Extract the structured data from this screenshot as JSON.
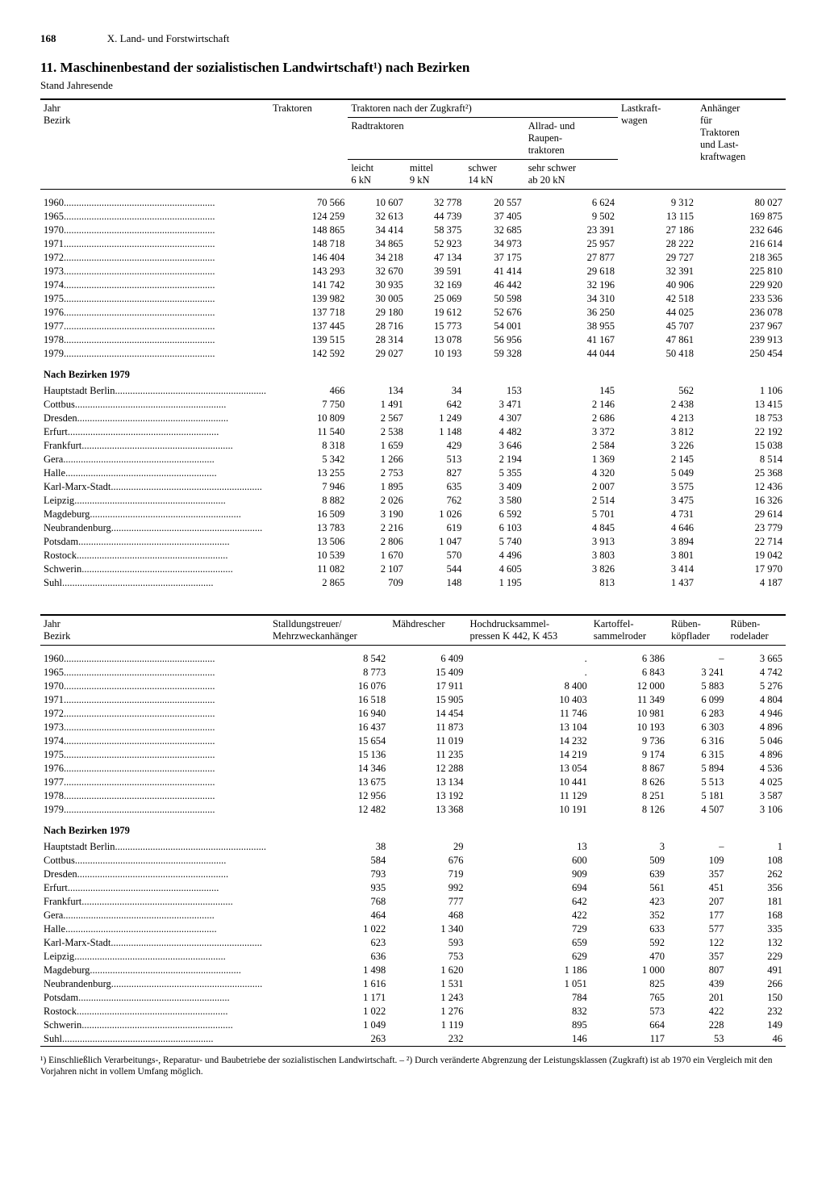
{
  "page": {
    "number": "168",
    "chapter": "X. Land- und Forstwirtschaft",
    "title": "11. Maschinenbestand der sozialistischen Landwirtschaft¹) nach Bezirken",
    "subtitle": "Stand Jahresende"
  },
  "table1": {
    "row_header": "Jahr\nBezirk",
    "col_traktoren": "Traktoren",
    "col_zugkraft": "Traktoren nach der Zugkraft²)",
    "col_rad": "Radtraktoren",
    "col_allrad": "Allrad- und\nRaupen-\ntraktoren",
    "col_lkw": "Lastkraft-\nwagen",
    "col_anh": "Anhänger\nfür\nTraktoren\nund Last-\nkraftwagen",
    "sub_leicht": "leicht\n6 kN",
    "sub_mittel": "mittel\n9 kN",
    "sub_schwer": "schwer\n14 kN",
    "sub_sehrschwer": "sehr schwer\nab 20 kN",
    "years": [
      {
        "label": "1960",
        "v": [
          "70 566",
          "10 607",
          "32 778",
          "20 557",
          "6 624",
          "9 312",
          "80 027"
        ]
      },
      {
        "label": "1965",
        "v": [
          "124 259",
          "32 613",
          "44 739",
          "37 405",
          "9 502",
          "13 115",
          "169 875"
        ]
      },
      {
        "label": "1970",
        "v": [
          "148 865",
          "34 414",
          "58 375",
          "32 685",
          "23 391",
          "27 186",
          "232 646"
        ]
      },
      {
        "label": "1971",
        "v": [
          "148 718",
          "34 865",
          "52 923",
          "34 973",
          "25 957",
          "28 222",
          "216 614"
        ]
      },
      {
        "label": "1972",
        "v": [
          "146 404",
          "34 218",
          "47 134",
          "37 175",
          "27 877",
          "29 727",
          "218 365"
        ]
      },
      {
        "label": "1973",
        "v": [
          "143 293",
          "32 670",
          "39 591",
          "41 414",
          "29 618",
          "32 391",
          "225 810"
        ]
      },
      {
        "label": "1974",
        "v": [
          "141 742",
          "30 935",
          "32 169",
          "46 442",
          "32 196",
          "40 906",
          "229 920"
        ]
      },
      {
        "label": "1975",
        "v": [
          "139 982",
          "30 005",
          "25 069",
          "50 598",
          "34 310",
          "42 518",
          "233 536"
        ]
      },
      {
        "label": "1976",
        "v": [
          "137 718",
          "29 180",
          "19 612",
          "52 676",
          "36 250",
          "44 025",
          "236 078"
        ]
      },
      {
        "label": "1977",
        "v": [
          "137 445",
          "28 716",
          "15 773",
          "54 001",
          "38 955",
          "45 707",
          "237 967"
        ]
      },
      {
        "label": "1978",
        "v": [
          "139 515",
          "28 314",
          "13 078",
          "56 956",
          "41 167",
          "47 861",
          "239 913"
        ]
      },
      {
        "label": "1979",
        "v": [
          "142 592",
          "29 027",
          "10 193",
          "59 328",
          "44 044",
          "50 418",
          "250 454"
        ]
      }
    ],
    "section_title": "Nach Bezirken 1979",
    "bezirke": [
      {
        "label": "Hauptstadt Berlin",
        "v": [
          "466",
          "134",
          "34",
          "153",
          "145",
          "562",
          "1 106"
        ]
      },
      {
        "label": "Cottbus",
        "v": [
          "7 750",
          "1 491",
          "642",
          "3 471",
          "2 146",
          "2 438",
          "13 415"
        ]
      },
      {
        "label": "Dresden",
        "v": [
          "10 809",
          "2 567",
          "1 249",
          "4 307",
          "2 686",
          "4 213",
          "18 753"
        ]
      },
      {
        "label": "Erfurt",
        "v": [
          "11 540",
          "2 538",
          "1 148",
          "4 482",
          "3 372",
          "3 812",
          "22 192"
        ]
      },
      {
        "label": "Frankfurt",
        "v": [
          "8 318",
          "1 659",
          "429",
          "3 646",
          "2 584",
          "3 226",
          "15 038"
        ]
      },
      {
        "label": "Gera",
        "v": [
          "5 342",
          "1 266",
          "513",
          "2 194",
          "1 369",
          "2 145",
          "8 514"
        ]
      },
      {
        "label": "Halle",
        "v": [
          "13 255",
          "2 753",
          "827",
          "5 355",
          "4 320",
          "5 049",
          "25 368"
        ]
      },
      {
        "label": "Karl-Marx-Stadt",
        "v": [
          "7 946",
          "1 895",
          "635",
          "3 409",
          "2 007",
          "3 575",
          "12 436"
        ]
      },
      {
        "label": "Leipzig",
        "v": [
          "8 882",
          "2 026",
          "762",
          "3 580",
          "2 514",
          "3 475",
          "16 326"
        ]
      },
      {
        "label": "Magdeburg",
        "v": [
          "16 509",
          "3 190",
          "1 026",
          "6 592",
          "5 701",
          "4 731",
          "29 614"
        ]
      },
      {
        "label": "Neubrandenburg",
        "v": [
          "13 783",
          "2 216",
          "619",
          "6 103",
          "4 845",
          "4 646",
          "23 779"
        ]
      },
      {
        "label": "Potsdam",
        "v": [
          "13 506",
          "2 806",
          "1 047",
          "5 740",
          "3 913",
          "3 894",
          "22 714"
        ]
      },
      {
        "label": "Rostock",
        "v": [
          "10 539",
          "1 670",
          "570",
          "4 496",
          "3 803",
          "3 801",
          "19 042"
        ]
      },
      {
        "label": "Schwerin",
        "v": [
          "11 082",
          "2 107",
          "544",
          "4 605",
          "3 826",
          "3 414",
          "17 970"
        ]
      },
      {
        "label": "Suhl",
        "v": [
          "2 865",
          "709",
          "148",
          "1 195",
          "813",
          "1 437",
          "4 187"
        ]
      }
    ]
  },
  "table2": {
    "row_header": "Jahr\nBezirk",
    "cols": [
      "Stalldungstreuer/\nMehrzweckanhänger",
      "Mähdrescher",
      "Hochdrucksammel-\npressen K 442, K 453",
      "Kartoffel-\nsammelroder",
      "Rüben-\nköpflader",
      "Rüben-\nrodelader"
    ],
    "years": [
      {
        "label": "1960",
        "v": [
          "8 542",
          "6 409",
          ".",
          "6 386",
          "–",
          "3 665"
        ]
      },
      {
        "label": "1965",
        "v": [
          "8 773",
          "15 409",
          ".",
          "6 843",
          "3 241",
          "4 742"
        ]
      },
      {
        "label": "1970",
        "v": [
          "16 076",
          "17 911",
          "8 400",
          "12 000",
          "5 883",
          "5 276"
        ]
      },
      {
        "label": "1971",
        "v": [
          "16 518",
          "15 905",
          "10 403",
          "11 349",
          "6 099",
          "4 804"
        ]
      },
      {
        "label": "1972",
        "v": [
          "16 940",
          "14 454",
          "11 746",
          "10 981",
          "6 283",
          "4 946"
        ]
      },
      {
        "label": "1973",
        "v": [
          "16 437",
          "11 873",
          "13 104",
          "10 193",
          "6 303",
          "4 896"
        ]
      },
      {
        "label": "1974",
        "v": [
          "15 654",
          "11 019",
          "14 232",
          "9 736",
          "6 316",
          "5 046"
        ]
      },
      {
        "label": "1975",
        "v": [
          "15 136",
          "11 235",
          "14 219",
          "9 174",
          "6 315",
          "4 896"
        ]
      },
      {
        "label": "1976",
        "v": [
          "14 346",
          "12 288",
          "13 054",
          "8 867",
          "5 894",
          "4 536"
        ]
      },
      {
        "label": "1977",
        "v": [
          "13 675",
          "13 134",
          "10 441",
          "8 626",
          "5 513",
          "4 025"
        ]
      },
      {
        "label": "1978",
        "v": [
          "12 956",
          "13 192",
          "11 129",
          "8 251",
          "5 181",
          "3 587"
        ]
      },
      {
        "label": "1979",
        "v": [
          "12 482",
          "13 368",
          "10 191",
          "8 126",
          "4 507",
          "3 106"
        ]
      }
    ],
    "section_title": "Nach Bezirken 1979",
    "bezirke": [
      {
        "label": "Hauptstadt Berlin",
        "v": [
          "38",
          "29",
          "13",
          "3",
          "–",
          "1"
        ]
      },
      {
        "label": "Cottbus",
        "v": [
          "584",
          "676",
          "600",
          "509",
          "109",
          "108"
        ]
      },
      {
        "label": "Dresden",
        "v": [
          "793",
          "719",
          "909",
          "639",
          "357",
          "262"
        ]
      },
      {
        "label": "Erfurt",
        "v": [
          "935",
          "992",
          "694",
          "561",
          "451",
          "356"
        ]
      },
      {
        "label": "Frankfurt",
        "v": [
          "768",
          "777",
          "642",
          "423",
          "207",
          "181"
        ]
      },
      {
        "label": "Gera",
        "v": [
          "464",
          "468",
          "422",
          "352",
          "177",
          "168"
        ]
      },
      {
        "label": "Halle",
        "v": [
          "1 022",
          "1 340",
          "729",
          "633",
          "577",
          "335"
        ]
      },
      {
        "label": "Karl-Marx-Stadt",
        "v": [
          "623",
          "593",
          "659",
          "592",
          "122",
          "132"
        ]
      },
      {
        "label": "Leipzig",
        "v": [
          "636",
          "753",
          "629",
          "470",
          "357",
          "229"
        ]
      },
      {
        "label": "Magdeburg",
        "v": [
          "1 498",
          "1 620",
          "1 186",
          "1 000",
          "807",
          "491"
        ]
      },
      {
        "label": "Neubrandenburg",
        "v": [
          "1 616",
          "1 531",
          "1 051",
          "825",
          "439",
          "266"
        ]
      },
      {
        "label": "Potsdam",
        "v": [
          "1 171",
          "1 243",
          "784",
          "765",
          "201",
          "150"
        ]
      },
      {
        "label": "Rostock",
        "v": [
          "1 022",
          "1 276",
          "832",
          "573",
          "422",
          "232"
        ]
      },
      {
        "label": "Schwerin",
        "v": [
          "1 049",
          "1 119",
          "895",
          "664",
          "228",
          "149"
        ]
      },
      {
        "label": "Suhl",
        "v": [
          "263",
          "232",
          "146",
          "117",
          "53",
          "46"
        ]
      }
    ]
  },
  "footnote": "¹) Einschließlich Verarbeitungs-, Reparatur- und Baubetriebe der sozialistischen Landwirtschaft. – ²) Durch veränderte Abgrenzung der Leistungsklassen (Zugkraft) ist ab 1970 ein Vergleich mit den Vorjahren nicht in vollem Umfang möglich.",
  "style": {
    "label_col_width_t1": "190px",
    "label_col_width_t2": "155px"
  }
}
